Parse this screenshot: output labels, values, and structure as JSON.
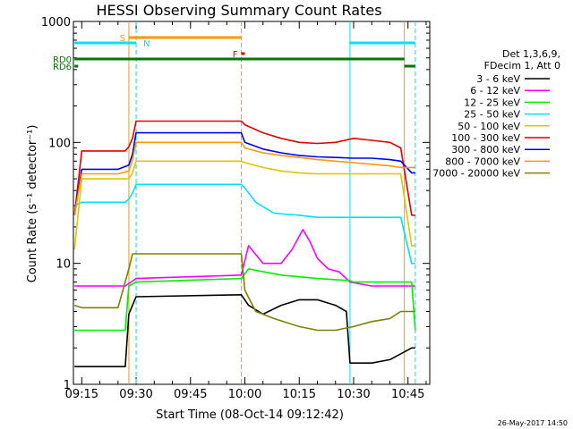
{
  "chart_data": {
    "type": "line",
    "title": "HESSI Observing Summary Count Rates",
    "xlabel": "Start Time (08-Oct-14 09:12:42)",
    "ylabel": "Count Rate (s⁻¹ detector⁻¹)",
    "y_scale": "log",
    "ylim": [
      1,
      1000
    ],
    "xlim": [
      "09:12:42",
      "10:51:00"
    ],
    "x_tick_labels": [
      "09:15",
      "09:30",
      "09:45",
      "10:00",
      "10:15",
      "10:30",
      "10:45"
    ],
    "y_tick_labels": [
      "1",
      "10",
      "100",
      "1000"
    ],
    "grid": false,
    "legend_position": "right",
    "legend_header": [
      "Det 1,3,6,9,",
      "FDecim 1, Att 0"
    ],
    "timestamp": "26-May-2017 14:50",
    "series": [
      {
        "name": "3 - 6 keV",
        "color": "#000000",
        "x": [
          "09:13",
          "09:20",
          "09:27",
          "09:28",
          "09:29",
          "09:30",
          "09:59",
          "10:01",
          "10:05",
          "10:10",
          "10:15",
          "10:20",
          "10:25",
          "10:28",
          "10:29",
          "10:35",
          "10:40",
          "10:46",
          "10:47"
        ],
        "y": [
          1.4,
          1.4,
          1.4,
          3.8,
          4.5,
          5.3,
          5.5,
          4.5,
          3.8,
          4.5,
          5.0,
          5.0,
          4.5,
          4.0,
          1.5,
          1.5,
          1.6,
          2.0,
          2.0
        ]
      },
      {
        "name": "6 - 12 keV",
        "color": "#ff00ff",
        "x": [
          "09:13",
          "09:20",
          "09:27",
          "09:30",
          "09:59",
          "10:01",
          "10:05",
          "10:10",
          "10:13",
          "10:16",
          "10:18",
          "10:20",
          "10:23",
          "10:26",
          "10:29",
          "10:35",
          "10:40",
          "10:46",
          "10:47"
        ],
        "y": [
          6.5,
          6.5,
          6.5,
          7.5,
          8.0,
          14,
          10,
          10,
          13,
          19,
          15,
          11,
          9,
          8.5,
          7,
          6.5,
          6.5,
          6.5,
          6.5
        ]
      },
      {
        "name": "12 - 25 keV",
        "color": "#00ee00",
        "x": [
          "09:13",
          "09:20",
          "09:27",
          "09:28",
          "09:30",
          "09:59",
          "10:01",
          "10:10",
          "10:20",
          "10:29",
          "10:30",
          "10:40",
          "10:46",
          "10:47"
        ],
        "y": [
          2.8,
          2.8,
          2.8,
          6.5,
          7.0,
          7.5,
          9.0,
          8.0,
          7.5,
          7.2,
          7.0,
          7.0,
          7.0,
          2.8
        ]
      },
      {
        "name": "25 - 50 keV",
        "color": "#00e0ff",
        "x": [
          "09:13",
          "09:15",
          "09:20",
          "09:25",
          "09:27",
          "09:28",
          "09:29",
          "09:30",
          "09:59",
          "10:00",
          "10:03",
          "10:08",
          "10:15",
          "10:20",
          "10:25",
          "10:30",
          "10:35",
          "10:40",
          "10:43",
          "10:46",
          "10:47"
        ],
        "y": [
          30,
          32,
          32,
          32,
          32,
          34,
          38,
          45,
          45,
          42,
          32,
          26,
          25,
          24,
          24,
          24,
          24,
          24,
          24,
          10,
          10
        ]
      },
      {
        "name": "50 - 100 keV",
        "color": "#d8c800",
        "x": [
          "09:13",
          "09:15",
          "09:20",
          "09:25",
          "09:28",
          "09:29",
          "09:30",
          "09:59",
          "10:00",
          "10:05",
          "10:10",
          "10:15",
          "10:20",
          "10:25",
          "10:30",
          "10:35",
          "10:40",
          "10:43",
          "10:46",
          "10:47"
        ],
        "y": [
          13,
          50,
          50,
          50,
          50,
          56,
          70,
          70,
          68,
          62,
          58,
          56,
          55,
          55,
          55,
          55,
          55,
          55,
          14,
          14
        ]
      },
      {
        "name": "100 - 300 keV",
        "color": "#e00000",
        "x": [
          "09:13",
          "09:15",
          "09:20",
          "09:25",
          "09:27",
          "09:28",
          "09:29",
          "09:30",
          "09:59",
          "10:00",
          "10:05",
          "10:10",
          "10:15",
          "10:20",
          "10:25",
          "10:30",
          "10:35",
          "10:40",
          "10:43",
          "10:46",
          "10:47"
        ],
        "y": [
          25,
          85,
          85,
          85,
          85,
          92,
          108,
          150,
          150,
          140,
          120,
          108,
          100,
          98,
          100,
          108,
          104,
          100,
          90,
          25,
          25
        ]
      },
      {
        "name": "300 - 800 keV",
        "color": "#0000ee",
        "x": [
          "09:13",
          "09:15",
          "09:20",
          "09:25",
          "09:28",
          "09:29",
          "09:30",
          "09:59",
          "10:00",
          "10:05",
          "10:10",
          "10:15",
          "10:20",
          "10:25",
          "10:30",
          "10:35",
          "10:40",
          "10:43",
          "10:46",
          "10:47"
        ],
        "y": [
          25,
          60,
          60,
          60,
          65,
          80,
          120,
          120,
          100,
          88,
          82,
          78,
          76,
          75,
          74,
          74,
          72,
          70,
          56,
          56
        ]
      },
      {
        "name": "800 - 7000 keV",
        "color": "#ff9900",
        "x": [
          "09:13",
          "09:15",
          "09:20",
          "09:25",
          "09:28",
          "09:29",
          "09:30",
          "09:59",
          "10:00",
          "10:05",
          "10:10",
          "10:15",
          "10:20",
          "10:25",
          "10:30",
          "10:35",
          "10:40",
          "10:43",
          "10:46",
          "10:47"
        ],
        "y": [
          25,
          55,
          55,
          55,
          58,
          72,
          100,
          100,
          90,
          82,
          78,
          75,
          72,
          70,
          68,
          66,
          64,
          62,
          62,
          62
        ]
      },
      {
        "name": "7000 - 20000 keV",
        "color": "#808000",
        "x": [
          "09:13",
          "09:15",
          "09:20",
          "09:25",
          "09:28",
          "09:29",
          "09:30",
          "09:59",
          "10:00",
          "10:03",
          "10:08",
          "10:15",
          "10:20",
          "10:25",
          "10:30",
          "10:35",
          "10:40",
          "10:43",
          "10:46",
          "10:47"
        ],
        "y": [
          4.5,
          4.3,
          4.3,
          4.3,
          9,
          12,
          12,
          12,
          6,
          4,
          3.5,
          3.0,
          2.8,
          2.8,
          3.0,
          3.3,
          3.5,
          4,
          4,
          4
        ]
      }
    ],
    "state_bars": [
      {
        "label": "S",
        "color": "#ff9900",
        "start": "09:28",
        "end": "09:59"
      },
      {
        "label": "N",
        "color": "#00e0ff",
        "start": "09:13",
        "end": "09:30",
        "label_at_end": true
      },
      {
        "label": "",
        "color": "#00e0ff",
        "start": "10:29",
        "end": "10:47"
      },
      {
        "label": "F",
        "color": "#e00000",
        "start": "09:59",
        "end": "10:00"
      },
      {
        "label": "RD0",
        "color": "#007700",
        "start": "09:13",
        "end": "10:44"
      },
      {
        "label": "RD6",
        "color": "#007700",
        "start": "09:13",
        "end": "09:14"
      },
      {
        "label": "",
        "color": "#007700",
        "start": "10:44",
        "end": "10:47"
      }
    ],
    "vertical_markers": [
      {
        "time": "09:28",
        "color": "#ff9900",
        "style": "solid"
      },
      {
        "time": "09:30",
        "color": "#00e0ff",
        "style": "dashed"
      },
      {
        "time": "09:59",
        "color": "#ff9900",
        "style": "dashed"
      },
      {
        "time": "10:29",
        "color": "#00e0ff",
        "style": "solid"
      },
      {
        "time": "10:44",
        "color": "#ff9900",
        "style": "solid"
      },
      {
        "time": "10:47",
        "color": "#00e0ff",
        "style": "dashed"
      }
    ]
  }
}
